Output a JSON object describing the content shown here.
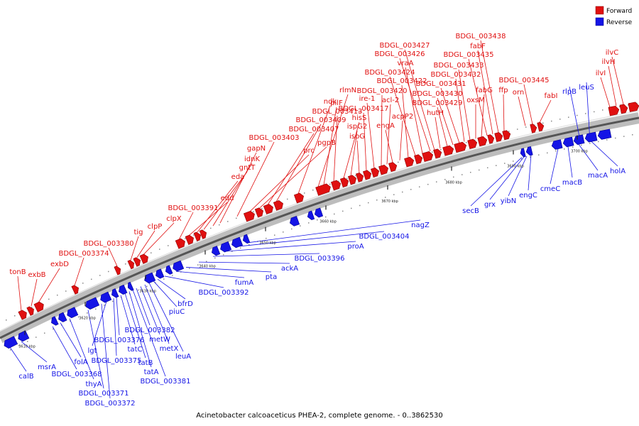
{
  "caption": "Acinetobacter calcoaceticus PHEA-2, complete genome. - 0..3862530",
  "legend": {
    "forward": {
      "label": "Forward",
      "color": "#e01010"
    },
    "reverse": {
      "label": "Reverse",
      "color": "#1414e6"
    }
  },
  "ticks": [
    "3610 kbp",
    "3620 kbp",
    "3630 kbp",
    "3640 kbp",
    "3650 kbp",
    "3660 kbp",
    "3670 kbp",
    "3680 kbp",
    "3690 kbp",
    "3700 kbp"
  ],
  "forward_labels": [
    "tonB",
    "exbB",
    "exbD",
    "BDGL_003374",
    "BDGL_003380",
    "tig",
    "clpP",
    "clpX",
    "BDGL_003391",
    "edd",
    "eda",
    "gntT",
    "idnK",
    "gapN",
    "BDGL_003403",
    "prc",
    "pgpB",
    "BDGL_003407",
    "BDGL_003409",
    "ndk",
    "rlmN",
    "pilF",
    "BDGL_003413",
    "hisS",
    "ispG2",
    "ispG",
    "BDGL_003417",
    "ire-1",
    "BDGL_003420",
    "acl-2",
    "engA",
    "acpP2",
    "BDGL_003422",
    "BDGL_003424",
    "vraA",
    "BDGL_003426",
    "BDGL_003427",
    "hutH",
    "BDGL_003429",
    "BDGL_003430",
    "BDGL_003431",
    "BDGL_003432",
    "BDGL_003433",
    "oxsM",
    "fabG",
    "BDGL_003435",
    "fabF",
    "BDGL_003438",
    "ffp",
    "orn",
    "BDGL_003445",
    "fabI",
    "ilvI",
    "ilvH",
    "ilvC"
  ],
  "reverse_labels": [
    "calB",
    "msrA",
    "BDGL_003368",
    "folA",
    "thyA",
    "BDGL_003371",
    "BDGL_003372",
    "lgt",
    "BDGL_003375",
    "BDGL_003376",
    "tatC",
    "tatB",
    "tatA",
    "BDGL_003381",
    "BDGL_003382",
    "metW",
    "metX",
    "leuA",
    "piuC",
    "bfrD",
    "BDGL_003392",
    "fumA",
    "pta",
    "ackA",
    "BDGL_003396",
    "proA",
    "BDGL_003404",
    "nagZ",
    "secB",
    "grx",
    "yibN",
    "engC",
    "cmeC",
    "macB",
    "macA",
    "holA",
    "rlpB",
    "leuS"
  ]
}
